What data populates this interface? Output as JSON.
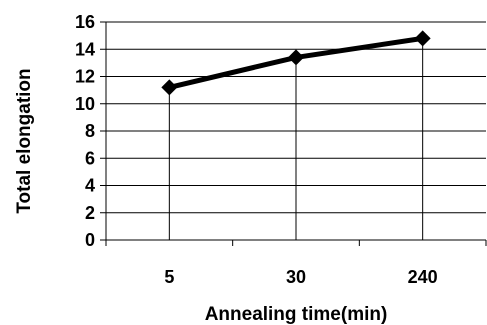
{
  "chart_data": {
    "type": "line",
    "title": "",
    "xlabel": "Annealing time(min)",
    "ylabel": "Total elongation",
    "categories": [
      "5",
      "30",
      "240"
    ],
    "series": [
      {
        "values": [
          11.2,
          13.4,
          14.8
        ],
        "color": "#000000",
        "marker": "diamond"
      }
    ],
    "ylim": [
      0,
      16
    ],
    "yticks": [
      "0",
      "2",
      "4",
      "6",
      "8",
      "10",
      "12",
      "14",
      "16"
    ],
    "grid": "horizontal",
    "legend": "none"
  }
}
